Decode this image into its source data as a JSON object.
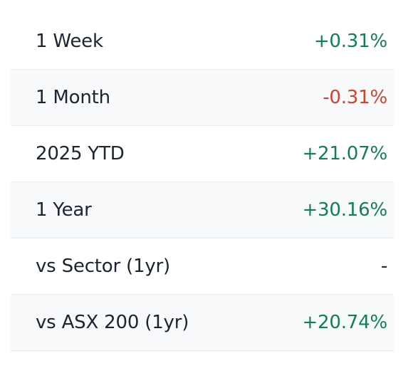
{
  "colors": {
    "positive": "#118056",
    "negative": "#d14331",
    "neutral": "#1b2430",
    "row_shade": "#f7f9fb",
    "divider": "#e8edf3"
  },
  "rows": [
    {
      "label": "1 Week",
      "value": "+0.31%",
      "trend": "positive"
    },
    {
      "label": "1 Month",
      "value": "-0.31%",
      "trend": "negative"
    },
    {
      "label": "2025 YTD",
      "value": "+21.07%",
      "trend": "positive"
    },
    {
      "label": "1 Year",
      "value": "+30.16%",
      "trend": "positive"
    },
    {
      "label": "vs Sector (1yr)",
      "value": "-",
      "trend": "neutral"
    },
    {
      "label": "vs ASX 200 (1yr)",
      "value": "+20.74%",
      "trend": "positive"
    }
  ]
}
